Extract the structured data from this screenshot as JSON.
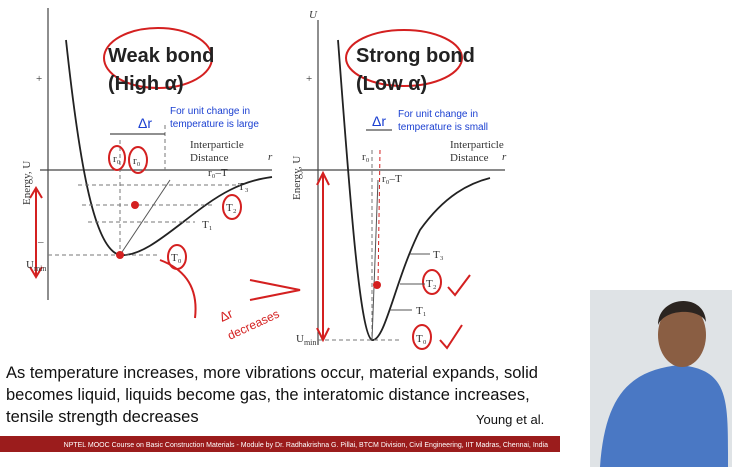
{
  "left_panel": {
    "title": "Weak bond",
    "subtitle": "(High α)",
    "delta": "Δr",
    "note": [
      "For unit change in",
      "temperature is large"
    ],
    "r0": "r₀",
    "r0_circled": "r₀",
    "x_axis": [
      "Interparticle",
      "Distance"
    ],
    "x_symbol": "r",
    "y_axis": "Energy, U",
    "plus": "+",
    "minus": "–",
    "umin": "U",
    "umin_sub": "min",
    "locus": "r₀–T",
    "levels": [
      "T₃",
      "T₂",
      "T₁",
      "T₀"
    ],
    "handwritten": [
      "Δr",
      "decreases"
    ]
  },
  "right_panel": {
    "y_symbol": "U",
    "title": "Strong bond",
    "subtitle": "(Low α)",
    "delta": "Δr",
    "note": [
      "For unit change in",
      "temperature is small"
    ],
    "r0": "r₀",
    "x_axis": [
      "Interparticle",
      "Distance"
    ],
    "x_symbol": "r",
    "y_axis": "Energy, U",
    "plus": "+",
    "umin": "U",
    "umin_sub": "min",
    "locus": "r₀–T",
    "levels": [
      "T₃",
      "T₂",
      "T₁",
      "T₀"
    ]
  },
  "caption": {
    "lines": [
      "As temperature increases, more vibrations occur, material expands, solid",
      "becomes liquid, liquids become gas, the interatomic distance increases,",
      "tensile strength decreases"
    ],
    "source": "Young et al."
  },
  "footer": "NPTEL MOOC Course on Basic Construction Materials - Module by Dr. Radhakrishna G. Pillai, BTCM Division, Civil Engineering, IIT Madras, Chennai, India"
}
